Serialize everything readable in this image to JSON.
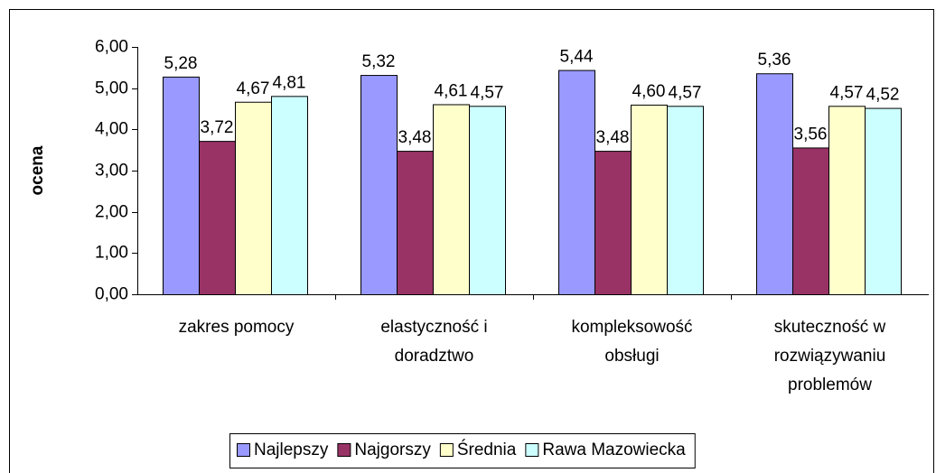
{
  "chart_data": {
    "type": "bar",
    "y_label": "ocena",
    "categories": [
      "zakres pomocy",
      "elastyczność i doradztwo",
      "kompleksowość obsługi",
      "skuteczność w rozwiązywaniu problemów"
    ],
    "series": [
      {
        "name": "Najlepszy",
        "color": "#9999ff",
        "values": [
          5.28,
          5.32,
          5.44,
          5.36
        ],
        "value_labels": [
          "5,28",
          "5,32",
          "5,44",
          "5,36"
        ]
      },
      {
        "name": "Najgorszy",
        "color": "#993366",
        "values": [
          3.72,
          3.48,
          3.48,
          3.56
        ],
        "value_labels": [
          "3,72",
          "3,48",
          "3,48",
          "3,56"
        ]
      },
      {
        "name": "Średnia",
        "color": "#ffffcc",
        "values": [
          4.67,
          4.61,
          4.6,
          4.57
        ],
        "value_labels": [
          "4,67",
          "4,61",
          "4,60",
          "4,57"
        ]
      },
      {
        "name": "Rawa Mazowiecka",
        "color": "#ccffff",
        "values": [
          4.81,
          4.57,
          4.57,
          4.52
        ],
        "value_labels": [
          "4,81",
          "4,57",
          "4,57",
          "4,52"
        ]
      }
    ],
    "ylim": [
      0,
      6
    ],
    "yticks": [
      {
        "value": 0,
        "label": "0,00"
      },
      {
        "value": 1,
        "label": "1,00"
      },
      {
        "value": 2,
        "label": "2,00"
      },
      {
        "value": 3,
        "label": "3,00"
      },
      {
        "value": 4,
        "label": "4,00"
      },
      {
        "value": 5,
        "label": "5,00"
      },
      {
        "value": 6,
        "label": "6,00"
      }
    ],
    "legend": "bottom"
  }
}
